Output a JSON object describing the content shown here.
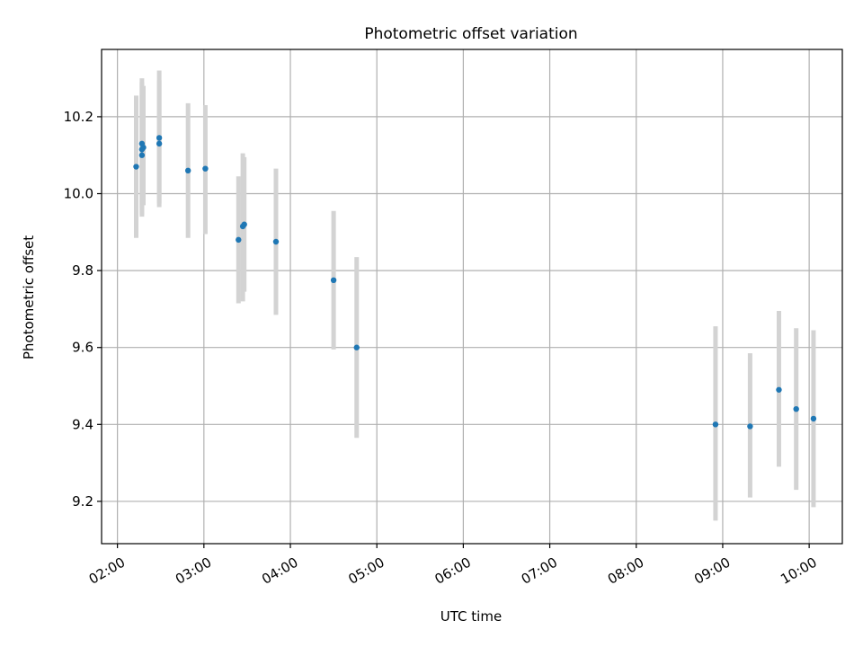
{
  "chart_data": {
    "type": "scatter",
    "title": "Photometric offset variation",
    "xlabel": "UTC time",
    "ylabel": "Photometric offset",
    "x_scale": "time",
    "xlim": [
      "01:49",
      "10:23"
    ],
    "ylim": [
      9.09,
      10.375
    ],
    "x_ticks": [
      "02:00",
      "03:00",
      "04:00",
      "05:00",
      "06:00",
      "07:00",
      "08:00",
      "09:00",
      "10:00"
    ],
    "y_ticks": [
      9.2,
      9.4,
      9.6,
      9.8,
      10.0,
      10.2
    ],
    "y_tick_labels": [
      "9.2",
      "9.4",
      "9.6",
      "9.8",
      "10.0",
      "10.2"
    ],
    "grid": true,
    "legend": "none",
    "x_tick_rotation": "30 degrees",
    "colors": {
      "points": "#1f77b4",
      "errorbars": "#d3d3d3",
      "grid": "#b0b0b0"
    },
    "points": [
      {
        "time": "02:13",
        "y": 10.07,
        "ylow": 9.885,
        "yhigh": 10.255
      },
      {
        "time": "02:17",
        "y": 10.1,
        "ylow": 9.945,
        "yhigh": 10.255
      },
      {
        "time": "02:17",
        "y": 10.115,
        "ylow": 9.94,
        "yhigh": 10.29
      },
      {
        "time": "02:17",
        "y": 10.13,
        "ylow": 9.96,
        "yhigh": 10.3
      },
      {
        "time": "02:18",
        "y": 10.12,
        "ylow": 9.97,
        "yhigh": 10.28
      },
      {
        "time": "02:29",
        "y": 10.13,
        "ylow": 9.965,
        "yhigh": 10.295
      },
      {
        "time": "02:29",
        "y": 10.145,
        "ylow": 9.975,
        "yhigh": 10.32
      },
      {
        "time": "02:49",
        "y": 10.06,
        "ylow": 9.885,
        "yhigh": 10.235
      },
      {
        "time": "03:01",
        "y": 10.065,
        "ylow": 9.895,
        "yhigh": 10.23
      },
      {
        "time": "03:24",
        "y": 9.88,
        "ylow": 9.715,
        "yhigh": 10.045
      },
      {
        "time": "03:27",
        "y": 9.915,
        "ylow": 9.72,
        "yhigh": 10.105
      },
      {
        "time": "03:28",
        "y": 9.92,
        "ylow": 9.745,
        "yhigh": 10.095
      },
      {
        "time": "03:50",
        "y": 9.875,
        "ylow": 9.685,
        "yhigh": 10.065
      },
      {
        "time": "04:30",
        "y": 9.775,
        "ylow": 9.595,
        "yhigh": 9.955
      },
      {
        "time": "04:46",
        "y": 9.6,
        "ylow": 9.365,
        "yhigh": 9.835
      },
      {
        "time": "08:55",
        "y": 9.4,
        "ylow": 9.15,
        "yhigh": 9.655
      },
      {
        "time": "09:19",
        "y": 9.395,
        "ylow": 9.21,
        "yhigh": 9.585
      },
      {
        "time": "09:39",
        "y": 9.49,
        "ylow": 9.29,
        "yhigh": 9.695
      },
      {
        "time": "09:51",
        "y": 9.44,
        "ylow": 9.23,
        "yhigh": 9.65
      },
      {
        "time": "10:03",
        "y": 9.415,
        "ylow": 9.185,
        "yhigh": 9.645
      }
    ]
  }
}
